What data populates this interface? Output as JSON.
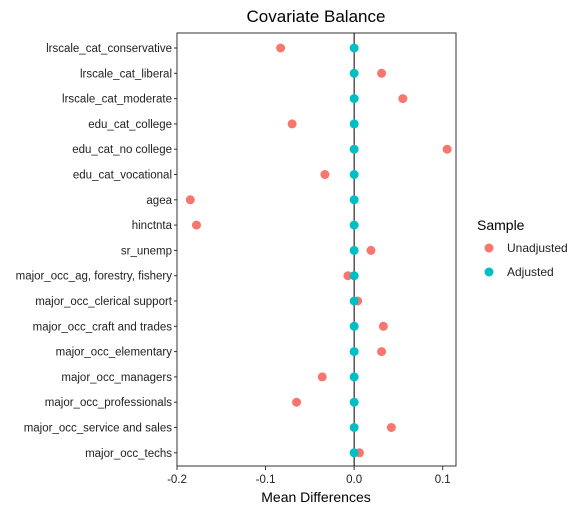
{
  "chart_data": {
    "type": "scatter",
    "title": "Covariate Balance",
    "xlabel": "Mean Differences",
    "ylabel": "",
    "xlim": [
      -0.2,
      0.115
    ],
    "xticks": [
      -0.2,
      -0.1,
      0,
      0.1
    ],
    "xtick_labels": [
      "-0.2",
      "-0.1",
      "0.0",
      "0.1"
    ],
    "grid": false,
    "reference_line_x": 0,
    "legend": {
      "title": "Sample",
      "placement": "right"
    },
    "categories": [
      "lrscale_cat_conservative",
      "lrscale_cat_liberal",
      "lrscale_cat_moderate",
      "edu_cat_college",
      "edu_cat_no college",
      "edu_cat_vocational",
      "agea",
      "hinctnta",
      "sr_unemp",
      "major_occ_ag, forestry, fishery",
      "major_occ_clerical support",
      "major_occ_craft and trades",
      "major_occ_elementary",
      "major_occ_managers",
      "major_occ_professionals",
      "major_occ_service and sales",
      "major_occ_techs"
    ],
    "series": [
      {
        "name": "Unadjusted",
        "color": "#F8766D",
        "values": [
          -0.083,
          0.031,
          0.055,
          -0.07,
          0.105,
          -0.033,
          -0.185,
          -0.178,
          0.019,
          -0.007,
          0.004,
          0.033,
          0.031,
          -0.036,
          -0.065,
          0.042,
          0.006
        ]
      },
      {
        "name": "Adjusted",
        "color": "#00BFC4",
        "values": [
          0,
          0,
          0,
          0,
          0,
          0,
          0,
          0,
          0,
          0,
          0,
          0,
          0,
          0,
          0,
          0,
          0
        ]
      }
    ]
  }
}
